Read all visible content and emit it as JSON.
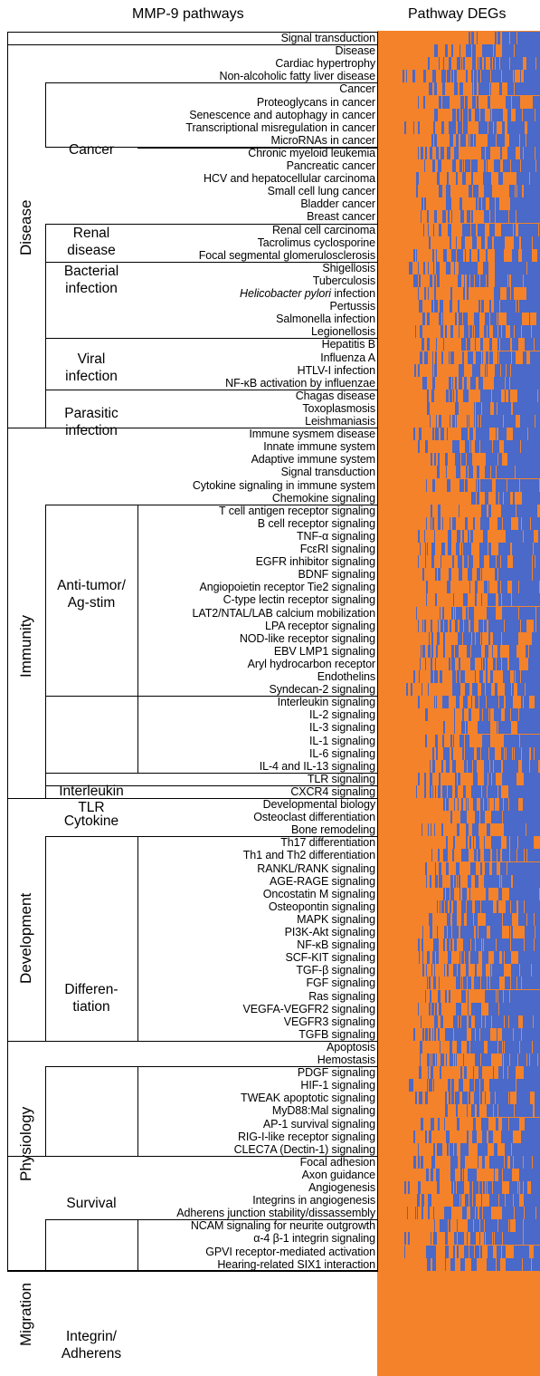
{
  "headers": {
    "left": "MMP-9 pathways",
    "right": "Pathway DEGs"
  },
  "colors": {
    "up": "#f4822a",
    "down": "#4a69c8"
  },
  "categories": [
    "Disease",
    "Immunity",
    "Development",
    "Physiology",
    "Migration"
  ],
  "subgroups": [
    "Cancer",
    "Renal\ndisease",
    "Bacterial\ninfection",
    "Viral\ninfection",
    "Parasitic\ninfection",
    "Anti-tumor/\nAg-stim",
    "Interleukin",
    "TLR",
    "Cytokine",
    "Differen-\ntiation",
    "Survival",
    "Integrin/\nAdherens"
  ],
  "pathways": [
    "Signal transduction",
    "Disease",
    "Cardiac hypertrophy",
    "Non-alcoholic fatty liver disease",
    "Cancer",
    "Proteoglycans in cancer",
    "Senescence and autophagy in cancer",
    "Transcriptional misregulation in cancer",
    "MicroRNAs in cancer",
    "Chronic myeloid leukemia",
    "Pancreatic cancer",
    "HCV and hepatocellular carcinoma",
    "Small cell lung cancer",
    "Bladder cancer",
    "Breast cancer",
    "Renal cell carcinoma",
    "Tacrolimus cyclosporine",
    "Focal segmental glomerulosclerosis",
    "Shigellosis",
    "Tuberculosis",
    "Helicobacter pylori infection",
    "Pertussis",
    "Salmonella infection",
    "Legionellosis",
    "Hepatitis B",
    "Influenza A",
    "HTLV-I infection",
    "NF-κB activation by influenzae",
    "Chagas disease",
    "Toxoplasmosis",
    "Leishmaniasis",
    "Immune sysmem disease",
    "Innate immune system",
    "Adaptive immune system",
    "Signal transduction",
    "Cytokine signaling in immune system",
    "Chemokine signaling",
    "T cell antigen receptor signaling",
    "B cell receptor signaling",
    "TNF-α signaling",
    "FcεRI signaling",
    "EGFR inhibitor signaling",
    "BDNF signaling",
    "Angiopoietin receptor Tie2 signaling",
    "C-type lectin receptor signaling",
    "LAT2/NTAL/LAB calcium mobilization",
    "LPA receptor signaling",
    "NOD-like receptor signaling",
    "EBV LMP1 signaling",
    "Aryl hydrocarbon receptor",
    "Endothelins",
    "Syndecan-2 signaling",
    "Interleukin signaling",
    "IL-2 signaling",
    "IL-3 signaling",
    "IL-1 signaling",
    "IL-6 signaling",
    "IL-4 and IL-13 signaling",
    "TLR signaling",
    "CXCR4 signaling",
    "Developmental biology",
    "Osteoclast differentiation",
    "Bone remodeling",
    "Th17 differentiation",
    "Th1 and Th2 differentiation",
    "RANKL/RANK signaling",
    "AGE-RAGE signaling",
    "Oncostatin M signaling",
    "Osteopontin signaling",
    "MAPK signaling",
    "PI3K-Akt signaling",
    "NF-κB signaling",
    "SCF-KIT signaling",
    "TGF-β signaling",
    "FGF signaling",
    "Ras signaling",
    "VEGFA-VEGFR2 signaling",
    "VEGFR3 signaling",
    "TGFB signaling",
    "Apoptosis",
    "Hemostasis",
    "PDGF signaling",
    "HIF-1 signaling",
    "TWEAK apoptotic signaling",
    "MyD88:Mal signaling",
    "AP-1 survival signaling",
    "RIG-I-like receptor signaling",
    "CLEC7A (Dectin-1) signaling",
    "Focal adhesion",
    "Axon guidance",
    "Angiogenesis",
    "Integrins in angiogenesis",
    "Adherens junction stability/dissassembly",
    "NCAM signaling for neurite outgrowth",
    "α-4 β-1 integrin signaling",
    "GPVI receptor-mediated activation",
    "Hearing-related SIX1 interaction"
  ],
  "heatmap_blue_fraction": [
    0.05,
    0.45,
    0.5,
    0.75,
    0.55,
    0.6,
    0.6,
    0.7,
    0.45,
    0.55,
    0.55,
    0.6,
    0.6,
    0.55,
    0.55,
    0.5,
    0.45,
    0.6,
    0.65,
    0.6,
    0.55,
    0.6,
    0.6,
    0.65,
    0.6,
    0.55,
    0.6,
    0.55,
    0.5,
    0.55,
    0.5,
    0.7,
    0.55,
    0.5,
    0.45,
    0.45,
    0.35,
    0.4,
    0.45,
    0.55,
    0.55,
    0.55,
    0.5,
    0.55,
    0.5,
    0.65,
    0.55,
    0.5,
    0.6,
    0.55,
    0.6,
    0.7,
    0.55,
    0.5,
    0.45,
    0.55,
    0.5,
    0.6,
    0.55,
    0.6,
    0.3,
    0.35,
    0.55,
    0.4,
    0.45,
    0.5,
    0.5,
    0.5,
    0.5,
    0.55,
    0.5,
    0.55,
    0.55,
    0.5,
    0.55,
    0.5,
    0.55,
    0.55,
    0.6,
    0.55,
    0.55,
    0.6,
    0.65,
    0.6,
    0.6,
    0.6,
    0.6,
    0.55,
    0.7,
    0.65,
    0.7,
    0.7,
    0.7,
    0.7,
    0.7,
    0.7,
    0.7
  ]
}
